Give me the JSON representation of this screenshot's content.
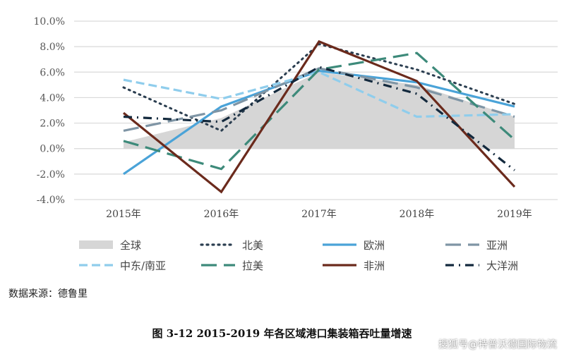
{
  "chart_data": {
    "type": "line",
    "categories": [
      "2015年",
      "2016年",
      "2017年",
      "2018年",
      "2019年"
    ],
    "ylim": [
      -4,
      10
    ],
    "yticks": [
      "-4.0%",
      "-2.0%",
      "0.0%",
      "2.0%",
      "4.0%",
      "6.0%",
      "8.0%",
      "10.0%"
    ],
    "grid": true,
    "legend_position": "bottom",
    "series": [
      {
        "name": "全球",
        "kind": "area",
        "color": "#d6d6d6",
        "values": [
          0.5,
          2.4,
          6.0,
          5.0,
          2.5
        ]
      },
      {
        "name": "北美",
        "dash": "dot",
        "color": "#2b3e50",
        "values": [
          4.8,
          1.4,
          8.2,
          6.2,
          3.5
        ]
      },
      {
        "name": "欧洲",
        "dash": "solid",
        "color": "#4aa3d8",
        "values": [
          -2.0,
          3.3,
          6.1,
          5.2,
          3.3
        ]
      },
      {
        "name": "亚洲",
        "dash": "longdash",
        "color": "#7f95a5",
        "values": [
          1.4,
          3.0,
          6.3,
          4.8,
          2.5
        ]
      },
      {
        "name": "中东/南亚",
        "dash": "dash",
        "color": "#8fcdec",
        "values": [
          5.4,
          3.9,
          6.0,
          2.5,
          2.7
        ]
      },
      {
        "name": "拉美",
        "dash": "longdash",
        "color": "#3d8a7a",
        "values": [
          0.6,
          -1.6,
          6.2,
          7.5,
          0.7
        ]
      },
      {
        "name": "非洲",
        "dash": "solid",
        "color": "#6b2a1c",
        "values": [
          2.8,
          -3.4,
          8.4,
          5.3,
          -3.0
        ]
      },
      {
        "name": "大洋洲",
        "dash": "dashdot",
        "color": "#13293d",
        "values": [
          2.5,
          2.1,
          6.4,
          4.3,
          -1.7
        ]
      }
    ]
  },
  "source": "数据来源：德鲁里",
  "caption": "图 3-12   2015-2019 年各区域港口集装箱吞吐量增速",
  "watermark": "搜狐号@特普沃德国际物流"
}
